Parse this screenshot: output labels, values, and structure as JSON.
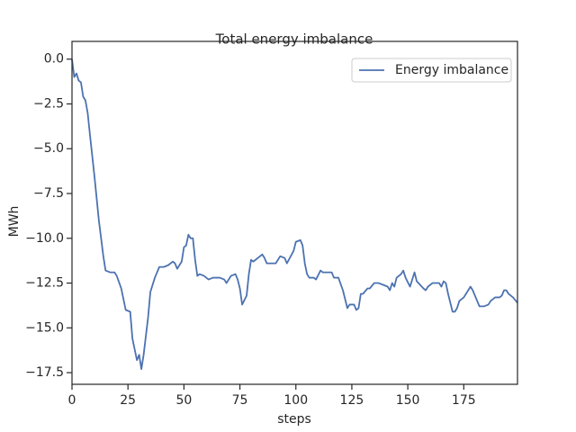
{
  "chart_data": {
    "type": "line",
    "title": "Total energy imbalance",
    "xlabel": "steps",
    "ylabel": "MWh",
    "x": [
      0,
      1,
      2,
      3,
      4,
      5,
      6,
      7,
      8,
      10,
      12,
      14,
      15,
      17,
      19,
      20,
      22,
      24,
      26,
      27,
      29,
      30,
      31,
      32,
      34,
      35,
      37,
      39,
      41,
      43,
      45,
      46,
      47,
      49,
      50,
      51,
      52,
      53,
      54,
      55,
      56,
      57,
      59,
      61,
      63,
      66,
      68,
      69,
      71,
      73,
      74,
      75,
      76,
      78,
      79,
      80,
      81,
      83,
      85,
      86,
      87,
      91,
      93,
      95,
      96,
      99,
      100,
      102,
      103,
      104,
      105,
      106,
      108,
      109,
      111,
      112,
      116,
      117,
      119,
      121,
      123,
      124,
      126,
      127,
      128,
      129,
      130,
      132,
      133,
      135,
      137,
      139,
      141,
      142,
      143,
      144,
      145,
      147,
      148,
      149,
      151,
      153,
      154,
      157,
      158,
      159,
      161,
      164,
      165,
      166,
      167,
      168,
      169,
      170,
      171,
      172,
      173,
      175,
      177,
      178,
      179,
      181,
      182,
      184,
      186,
      187,
      189,
      191,
      192,
      193,
      194,
      195,
      197,
      199
    ],
    "series": [
      {
        "name": "Energy imbalance",
        "color": "#4c72b0",
        "values": [
          0,
          -1.0,
          -0.8,
          -1.2,
          -1.3,
          -2.1,
          -2.3,
          -3.0,
          -4.2,
          -6.5,
          -9.0,
          -11.0,
          -11.8,
          -11.9,
          -11.9,
          -12.1,
          -12.8,
          -14.0,
          -14.1,
          -15.6,
          -16.8,
          -16.5,
          -17.3,
          -16.5,
          -14.4,
          -13.0,
          -12.2,
          -11.6,
          -11.6,
          -11.5,
          -11.3,
          -11.4,
          -11.7,
          -11.3,
          -10.5,
          -10.4,
          -9.8,
          -10.0,
          -10.0,
          -11.2,
          -12.1,
          -12.0,
          -12.1,
          -12.3,
          -12.2,
          -12.2,
          -12.3,
          -12.5,
          -12.1,
          -12.0,
          -12.3,
          -12.8,
          -13.7,
          -13.2,
          -12.0,
          -11.2,
          -11.3,
          -11.1,
          -10.9,
          -11.1,
          -11.4,
          -11.4,
          -11.0,
          -11.1,
          -11.4,
          -10.7,
          -10.2,
          -10.1,
          -10.4,
          -11.4,
          -12.0,
          -12.2,
          -12.2,
          -12.3,
          -11.8,
          -11.9,
          -11.9,
          -12.2,
          -12.2,
          -12.9,
          -13.9,
          -13.7,
          -13.7,
          -14.0,
          -13.9,
          -13.1,
          -13.1,
          -12.8,
          -12.8,
          -12.5,
          -12.5,
          -12.6,
          -12.7,
          -12.9,
          -12.5,
          -12.7,
          -12.2,
          -12.0,
          -11.8,
          -12.2,
          -12.7,
          -11.9,
          -12.4,
          -12.8,
          -12.9,
          -12.7,
          -12.5,
          -12.5,
          -12.7,
          -12.4,
          -12.5,
          -13.1,
          -13.6,
          -14.1,
          -14.1,
          -13.9,
          -13.5,
          -13.3,
          -12.9,
          -12.7,
          -12.9,
          -13.5,
          -13.8,
          -13.8,
          -13.7,
          -13.5,
          -13.3,
          -13.3,
          -13.2,
          -12.9,
          -12.9,
          -13.1,
          -13.3,
          -13.6
        ]
      }
    ],
    "xlim": [
      0,
      199
    ],
    "xticks": [
      0,
      25,
      50,
      75,
      100,
      125,
      150,
      175
    ],
    "ylim": [
      -18.15,
      0.99
    ],
    "yticks": [
      {
        "value": 0,
        "label": "0.0"
      },
      {
        "value": -2.5,
        "label": "−2.5"
      },
      {
        "value": -5,
        "label": "−5.0"
      },
      {
        "value": -7.5,
        "label": "−7.5"
      },
      {
        "value": -10,
        "label": "−10.0"
      },
      {
        "value": -12.5,
        "label": "−12.5"
      },
      {
        "value": -15,
        "label": "−15.0"
      },
      {
        "value": -17.5,
        "label": "−17.5"
      }
    ],
    "legend": "upper right"
  }
}
